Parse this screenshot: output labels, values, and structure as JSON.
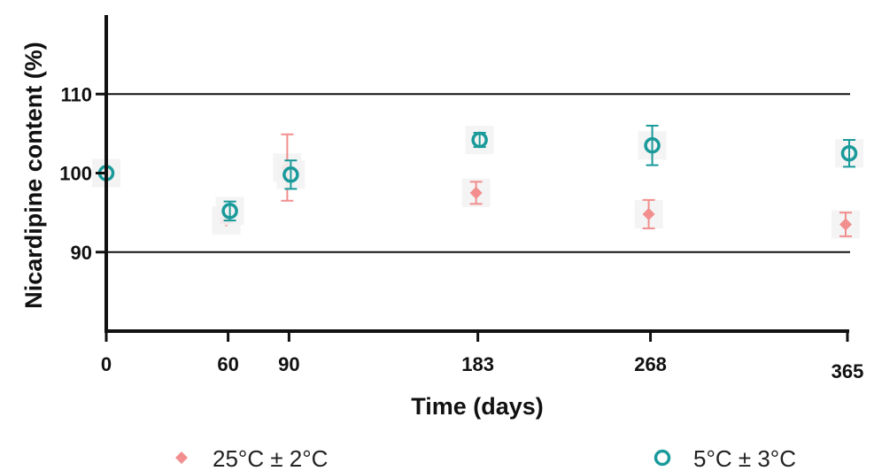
{
  "chart_data": {
    "type": "scatter",
    "title": "",
    "xlabel": "Time (days)",
    "ylabel": "Nicardipine content (%)",
    "xlim": [
      0,
      365
    ],
    "ylim": [
      80,
      120
    ],
    "x_ticks": [
      0,
      60,
      90,
      183,
      268,
      365
    ],
    "y_ticks": [
      90,
      100,
      110
    ],
    "reference_lines": [
      90,
      110
    ],
    "grid": false,
    "legend_position": "bottom",
    "series": [
      {
        "name": "25°C ± 2°C",
        "marker": "diamond",
        "color": "#f28e8e",
        "x": [
          0,
          60,
          90,
          183,
          268,
          365
        ],
        "values": [
          100,
          94,
          100.7,
          97.5,
          94.8,
          93.5
        ],
        "error": [
          0,
          0.3,
          4.2,
          1.4,
          1.8,
          1.5
        ]
      },
      {
        "name": "5°C ± 3°C",
        "marker": "circle",
        "color": "#1a9a9a",
        "x": [
          0,
          60,
          90,
          183,
          268,
          365
        ],
        "values": [
          100,
          95.2,
          99.8,
          104.2,
          103.5,
          102.5
        ],
        "error": [
          0,
          1.2,
          1.8,
          0.9,
          2.5,
          1.7
        ]
      }
    ]
  }
}
